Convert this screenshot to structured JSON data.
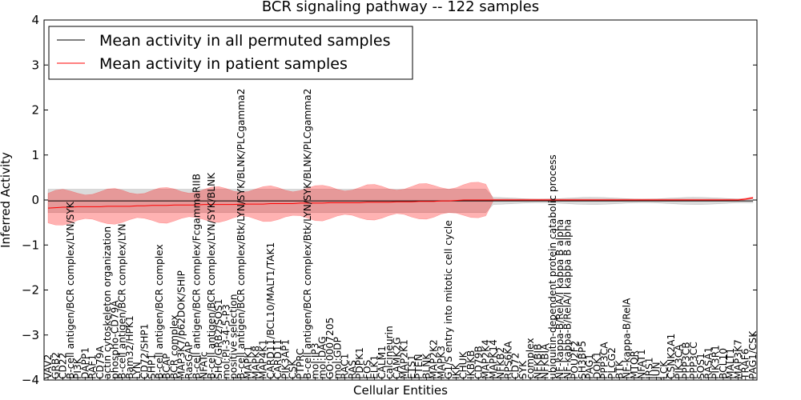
{
  "chart_data": {
    "type": "line",
    "title": "BCR signaling pathway -- 122 samples",
    "xlabel": "Cellular Entities",
    "ylabel": "Inferred Activity",
    "ylim": [
      -4,
      4
    ],
    "yticks": [
      -4,
      -3,
      -2,
      -1,
      0,
      1,
      2,
      3,
      4
    ],
    "grid": false,
    "legend_position": "top-left",
    "categories": [
      "VAV2",
      "GRB2",
      "CD22",
      "B-cell antigen/BCR complex/LYN/SYK",
      "PI3K",
      "DAPP1",
      "RAF1",
      "CD79A",
      "actin cytoskeleton organization",
      "phospho-CD79A",
      "B-cell antigen/BCR complex/LYN",
      "Bam32/HPK1",
      "LYN",
      "CD72/SHP1",
      "SHP1",
      "B-cell antigen/BCR complex",
      "BCAP",
      "BCR complex",
      "MAP3K7/p62DOK/SHIP",
      "RasGAP",
      "B-cell antigen/BCR complex/FcgammaRIIB",
      "NFATc",
      "B-cell antigen/BCR complex/LYN/SYK/BLNK",
      "SHC/GRB2/SOS1",
      "mol:PI-3-4-5-P3",
      "positive selection",
      "B-cell antigen/BCR complex/Btk/LYN/SYK/BLNK/PLCgamma2",
      "MAPK1",
      "MAPK8",
      "MAP4K1",
      "CARD11/BCL10/MALT1/TAK1",
      "CARD11",
      "PIK3AP1",
      "CSK",
      "PTPRC",
      "B-cell antigen/BCR complex/Btk/LYN/SYK/BLNK/PLCgamma2",
      "mol:IP3",
      "mol:DAG",
      "GO:0007205",
      "mol:GDP",
      "RAC1",
      "RAS",
      "PDPK1",
      "FOS",
      "ELK1",
      "CALM1",
      "calcineurin",
      "CAMK2G",
      "MAP2K1",
      "ETS1",
      "PTEN",
      "BLNK",
      "MAP2K2",
      "MAPK3",
      "G1/S entry into mitotic cell cycle",
      "IKK",
      "CHUK",
      "IKBKB",
      "CD79B",
      "MAP2K4",
      "MAPK14",
      "NFKB2",
      "RPS6KA",
      "CD72",
      "SYK",
      "complex",
      "NFKBIB",
      "NFKBIA",
      "ubiquitin-dependent protein catabolic process",
      "NF-kappa-B/RelA/I kappa B alpha",
      "NF-kappa-B/RelA/I kappa B alpha",
      "POU2F2",
      "SH3BP5",
      "PAG1",
      "DOK1",
      "PPP3CA",
      "PLCG2",
      "BTK",
      "NF-kappa-B/RelA",
      "MTOR",
      "NFAT1",
      "IRS1",
      "JUN",
      "LCK",
      "CSNK2A1",
      "PIK3CA",
      "PPP3CB",
      "PPP3CC",
      "SOS1",
      "RASA1",
      "PIK3R1",
      "BCL10",
      "MALT1",
      "MAP3K7",
      "TRAF6",
      "PAG1/CSK"
    ],
    "series": [
      {
        "name": "Mean activity in all permuted samples",
        "color": "#000000",
        "values": [
          -0.02,
          -0.02,
          -0.02,
          -0.02,
          -0.02,
          -0.02,
          -0.02,
          -0.02,
          -0.02,
          -0.02,
          -0.02,
          -0.02,
          -0.02,
          -0.02,
          -0.02,
          -0.02,
          -0.02,
          -0.02,
          -0.02,
          -0.02,
          -0.02,
          -0.02,
          -0.02,
          -0.02,
          -0.02,
          -0.02,
          -0.02,
          -0.02,
          -0.02,
          -0.02,
          -0.02,
          -0.02,
          -0.02,
          -0.02,
          -0.02,
          -0.02,
          -0.02,
          -0.02,
          -0.02,
          -0.02,
          -0.02,
          -0.02,
          -0.02,
          -0.02,
          -0.02,
          -0.02,
          -0.02,
          -0.02,
          -0.02,
          -0.02,
          -0.02,
          -0.02,
          -0.02,
          -0.02,
          -0.02,
          -0.02,
          -0.02,
          -0.02,
          -0.02,
          -0.02,
          -0.02,
          -0.02,
          -0.02,
          -0.02,
          -0.02,
          -0.02,
          -0.02,
          -0.02,
          -0.02,
          -0.02,
          -0.02,
          -0.02,
          -0.02,
          -0.02,
          -0.02,
          -0.02,
          -0.02,
          -0.02,
          -0.02,
          -0.02,
          -0.02,
          -0.02,
          -0.02,
          -0.02,
          -0.02,
          -0.02,
          -0.02,
          -0.02,
          -0.02,
          -0.02,
          -0.02,
          -0.02,
          -0.02,
          -0.02,
          -0.02,
          -0.02
        ]
      },
      {
        "name": "Mean activity in patient samples",
        "color": "#ff0000",
        "values": [
          -0.18,
          -0.17,
          -0.16,
          -0.16,
          -0.15,
          -0.15,
          -0.15,
          -0.15,
          -0.14,
          -0.14,
          -0.14,
          -0.14,
          -0.13,
          -0.13,
          -0.12,
          -0.12,
          -0.12,
          -0.11,
          -0.11,
          -0.11,
          -0.11,
          -0.1,
          -0.1,
          -0.1,
          -0.1,
          -0.1,
          -0.09,
          -0.09,
          -0.09,
          -0.09,
          -0.08,
          -0.08,
          -0.08,
          -0.08,
          -0.07,
          -0.07,
          -0.07,
          -0.07,
          -0.06,
          -0.06,
          -0.06,
          -0.06,
          -0.06,
          -0.05,
          -0.05,
          -0.05,
          -0.05,
          -0.04,
          -0.04,
          -0.04,
          -0.03,
          -0.03,
          -0.03,
          -0.02,
          -0.02,
          -0.01,
          0,
          0,
          0,
          0,
          0,
          0,
          0,
          0,
          0,
          0,
          0,
          0,
          0,
          0,
          0,
          0,
          0,
          0,
          0,
          0,
          0,
          0,
          0,
          0,
          0,
          0,
          0,
          0,
          0,
          0,
          0,
          0,
          0,
          0,
          0,
          0,
          0,
          0,
          0.02,
          0.05
        ]
      }
    ]
  }
}
